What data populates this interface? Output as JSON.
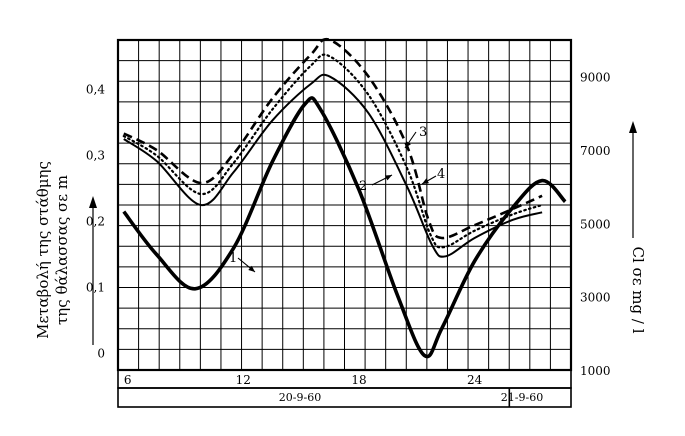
{
  "chart_data": {
    "type": "line",
    "y_left": {
      "label_line1": "Μεταβολή της στάθμης",
      "label_line2": "της θάλασσας σε m",
      "ticks": [
        "0,4",
        "0,3",
        "0,2",
        "0,1",
        "0"
      ],
      "range": [
        -0.025,
        0.475
      ]
    },
    "y_right": {
      "label": "Cl σε mg / l",
      "ticks": [
        "9000",
        "7000",
        "5000",
        "3000",
        "1000"
      ],
      "range": [
        1000,
        10000
      ]
    },
    "x": {
      "ticks": [
        "6",
        "12",
        "18",
        "24"
      ],
      "range": [
        5.5,
        29
      ],
      "date_labels": [
        "20-9-60",
        "21-9-60"
      ],
      "date_boundary": 25.8
    },
    "grid": true,
    "series": [
      {
        "name": "1",
        "axis": "left",
        "style": "thick",
        "x": [
          5.8,
          7.5,
          9.5,
          11.5,
          13.5,
          15.2,
          16.0,
          18.0,
          20.0,
          21.4,
          22.3,
          24.0,
          26.0,
          27.5,
          28.7
        ],
        "y": [
          0.215,
          0.15,
          0.098,
          0.16,
          0.29,
          0.378,
          0.37,
          0.248,
          0.088,
          -0.003,
          0.038,
          0.14,
          0.222,
          0.262,
          0.23
        ]
      },
      {
        "name": "2",
        "axis": "right",
        "style": "solid",
        "x": [
          5.8,
          7.5,
          9.8,
          11.5,
          13.5,
          15.5,
          16.5,
          18.5,
          20.5,
          21.8,
          22.5,
          24.0,
          26.0,
          27.5
        ],
        "y": [
          7300,
          6700,
          5500,
          6400,
          7800,
          8800,
          9000,
          8000,
          6000,
          4400,
          4100,
          4600,
          5100,
          5300
        ]
      },
      {
        "name": "3",
        "axis": "right",
        "style": "dashed",
        "x": [
          5.8,
          7.5,
          9.8,
          11.5,
          13.5,
          15.5,
          16.5,
          18.5,
          20.5,
          21.6,
          22.3,
          24.0,
          26.0,
          27.5
        ],
        "y": [
          7450,
          7000,
          6100,
          6900,
          8400,
          9600,
          10000,
          9000,
          7100,
          5100,
          4600,
          4950,
          5400,
          5750
        ]
      },
      {
        "name": "4",
        "axis": "right",
        "style": "dotted",
        "x": [
          5.8,
          7.5,
          9.8,
          11.5,
          13.5,
          15.5,
          16.5,
          18.5,
          20.5,
          21.7,
          22.4,
          24.0,
          26.0,
          27.5
        ],
        "y": [
          7380,
          6850,
          5800,
          6650,
          8100,
          9300,
          9550,
          8500,
          6500,
          4700,
          4350,
          4800,
          5250,
          5500
        ]
      }
    ],
    "annotations": [
      "1",
      "2",
      "3",
      "4"
    ]
  }
}
